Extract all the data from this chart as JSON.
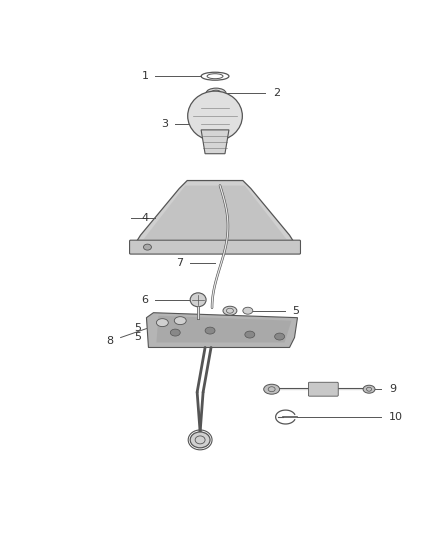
{
  "bg_color": "#ffffff",
  "line_color": "#555555",
  "label_color": "#333333",
  "figsize": [
    4.38,
    5.33
  ],
  "dpi": 100
}
